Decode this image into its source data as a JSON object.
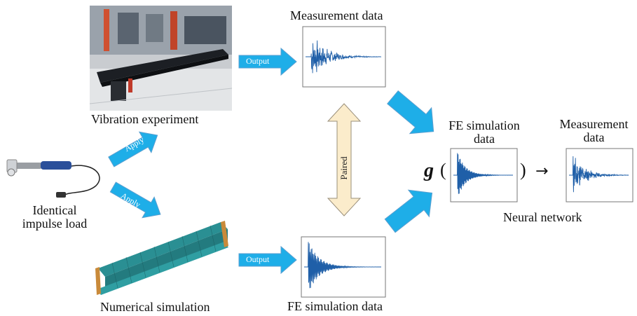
{
  "labels": {
    "vibration_experiment": "Vibration experiment",
    "identical_impulse_load_line1": "Identical",
    "identical_impulse_load_line2": "impulse load",
    "numerical_simulation": "Numerical simulation",
    "measurement_data_top": "Measurement data",
    "fe_simulation_data_bottom": "FE simulation data",
    "fe_simulation_data_nn_line1": "FE simulation",
    "fe_simulation_data_nn_line2": "data",
    "measurement_data_nn_line1": "Measurement",
    "measurement_data_nn_line2": "data",
    "neural_network": "Neural network",
    "g_symbol": "g",
    "open_paren": "(",
    "close_paren": ")",
    "arrow_symbol": "→"
  },
  "arrow_labels": {
    "output_top": "Output",
    "output_bottom": "Output",
    "apply_top": "Apply",
    "apply_bottom": "Apply",
    "paired": "Paired"
  },
  "colors": {
    "arrow_fill": "#1eaee8",
    "arrow_stroke": "#5a9fd0",
    "paired_fill": "#fbeccb",
    "paired_stroke": "#9a8f7a",
    "signal": "#1f5fa8",
    "beam_teal": "#2a8f93",
    "beam_end": "#c98a3a"
  },
  "icons": [
    "impact-hammer-icon",
    "test-beam-photo",
    "fe-beam-model"
  ]
}
